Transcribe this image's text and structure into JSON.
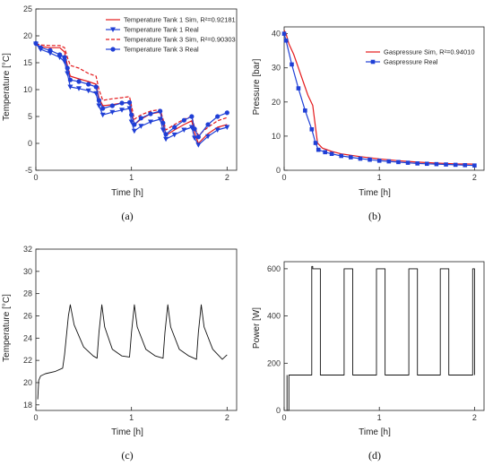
{
  "colors": {
    "sim": "#e41a1c",
    "real": "#1f3fd6",
    "plain": "#111111"
  },
  "chart_data": [
    {
      "id": "a",
      "type": "line",
      "caption": "(a)",
      "xlabel": "Time [h]",
      "ylabel": "Temperature [°C]",
      "xlim": [
        0,
        2.1
      ],
      "ylim": [
        -5,
        25
      ],
      "xticks": [
        0,
        1,
        2
      ],
      "yticks": [
        -5,
        0,
        5,
        10,
        15,
        20,
        25
      ],
      "legend_position": "top-right",
      "series": [
        {
          "name": "Temperature Tank 1 Sim, R²=0.92181",
          "color": "sim",
          "dash": false,
          "marker": "none",
          "x": [
            0,
            0.05,
            0.15,
            0.25,
            0.3,
            0.33,
            0.36,
            0.45,
            0.55,
            0.63,
            0.66,
            0.7,
            0.8,
            0.9,
            0.98,
            1.0,
            1.03,
            1.1,
            1.2,
            1.3,
            1.33,
            1.36,
            1.45,
            1.55,
            1.63,
            1.66,
            1.7,
            1.8,
            1.9,
            2.0
          ],
          "y": [
            18.3,
            18.0,
            17.8,
            17.8,
            17.0,
            14.5,
            12.5,
            12.0,
            11.5,
            11.0,
            8.5,
            7.0,
            7.2,
            7.5,
            7.6,
            6.0,
            3.5,
            4.5,
            5.5,
            5.8,
            3.5,
            1.5,
            2.5,
            3.5,
            4.2,
            2.0,
            0.0,
            1.8,
            3.0,
            3.5
          ]
        },
        {
          "name": "Temperature Tank 1 Real",
          "color": "real",
          "dash": false,
          "marker": "tri",
          "x": [
            0,
            0.05,
            0.15,
            0.25,
            0.3,
            0.33,
            0.36,
            0.45,
            0.55,
            0.63,
            0.66,
            0.7,
            0.8,
            0.9,
            0.98,
            1.0,
            1.03,
            1.1,
            1.2,
            1.3,
            1.33,
            1.36,
            1.45,
            1.55,
            1.63,
            1.66,
            1.7,
            1.8,
            1.9,
            2.0
          ],
          "y": [
            18.5,
            17.5,
            16.8,
            16.0,
            15.2,
            13.0,
            10.5,
            10.2,
            9.8,
            9.3,
            7.0,
            5.3,
            5.8,
            6.2,
            6.5,
            4.0,
            2.3,
            3.2,
            4.0,
            4.5,
            2.5,
            0.8,
            1.6,
            2.5,
            3.0,
            1.0,
            -0.3,
            1.3,
            2.5,
            3.0
          ]
        },
        {
          "name": "Temperature Tank 3 Sim, R²=0.90303",
          "color": "sim",
          "dash": true,
          "marker": "none",
          "x": [
            0,
            0.05,
            0.15,
            0.25,
            0.3,
            0.33,
            0.36,
            0.45,
            0.55,
            0.63,
            0.66,
            0.7,
            0.8,
            0.9,
            0.98,
            1.0,
            1.03,
            1.1,
            1.2,
            1.3,
            1.33,
            1.36,
            1.45,
            1.55,
            1.63,
            1.66,
            1.7,
            1.8,
            1.9,
            2.0
          ],
          "y": [
            18.5,
            18.3,
            18.2,
            18.2,
            17.8,
            16.0,
            14.5,
            14.0,
            13.0,
            12.5,
            10.0,
            8.0,
            8.3,
            8.5,
            8.7,
            7.0,
            4.5,
            5.3,
            6.0,
            6.3,
            4.5,
            2.5,
            3.5,
            4.5,
            5.0,
            3.0,
            1.5,
            3.0,
            4.2,
            4.8
          ]
        },
        {
          "name": "Temperature Tank 3 Real",
          "color": "real",
          "dash": false,
          "marker": "circle",
          "x": [
            0,
            0.05,
            0.15,
            0.25,
            0.3,
            0.33,
            0.36,
            0.45,
            0.55,
            0.63,
            0.66,
            0.7,
            0.8,
            0.9,
            0.98,
            1.0,
            1.03,
            1.1,
            1.2,
            1.3,
            1.33,
            1.36,
            1.45,
            1.55,
            1.63,
            1.66,
            1.7,
            1.8,
            1.9,
            2.0
          ],
          "y": [
            18.6,
            17.8,
            17.3,
            16.5,
            16.0,
            14.0,
            11.8,
            11.5,
            11.0,
            10.5,
            8.0,
            6.5,
            7.0,
            7.5,
            7.6,
            5.3,
            3.5,
            4.7,
            5.5,
            6.0,
            3.8,
            1.7,
            3.0,
            4.3,
            5.0,
            2.7,
            1.2,
            3.5,
            5.0,
            5.7
          ]
        }
      ]
    },
    {
      "id": "b",
      "type": "line",
      "caption": "(b)",
      "xlabel": "Time [h]",
      "ylabel": "Pressure [bar]",
      "xlim": [
        0,
        2.1
      ],
      "ylim": [
        0,
        42
      ],
      "xticks": [
        0,
        1,
        2
      ],
      "yticks": [
        0,
        10,
        20,
        30,
        40
      ],
      "legend_position": "top-right",
      "series": [
        {
          "name": "Gaspressure Sim, R²=0.94010",
          "color": "sim",
          "dash": false,
          "marker": "none",
          "x": [
            0,
            0.02,
            0.05,
            0.1,
            0.15,
            0.2,
            0.25,
            0.3,
            0.35,
            0.4,
            0.5,
            0.6,
            0.8,
            1.0,
            1.2,
            1.4,
            1.6,
            1.8,
            2.0
          ],
          "y": [
            41,
            40,
            37,
            34,
            30,
            26,
            22,
            19,
            8,
            6.5,
            5.5,
            4.8,
            4.0,
            3.3,
            2.8,
            2.4,
            2.1,
            1.9,
            1.8
          ]
        },
        {
          "name": "Gaspressure Real",
          "color": "real",
          "dash": false,
          "marker": "square",
          "x": [
            0,
            0.02,
            0.08,
            0.15,
            0.22,
            0.29,
            0.33,
            0.36,
            0.43,
            0.5,
            0.6,
            0.7,
            0.8,
            0.9,
            1.0,
            1.1,
            1.2,
            1.3,
            1.4,
            1.5,
            1.6,
            1.7,
            1.8,
            1.9,
            2.0
          ],
          "y": [
            40,
            38,
            31,
            24,
            17.5,
            12,
            8,
            6,
            5.3,
            4.8,
            4.2,
            3.8,
            3.4,
            3.1,
            2.8,
            2.6,
            2.4,
            2.2,
            2.0,
            1.9,
            1.8,
            1.7,
            1.6,
            1.5,
            1.4
          ]
        }
      ]
    },
    {
      "id": "c",
      "type": "line",
      "caption": "(c)",
      "xlabel": "Time [h]",
      "ylabel": "Temperature [°C]",
      "xlim": [
        0,
        2.1
      ],
      "ylim": [
        17.5,
        32
      ],
      "xticks": [
        0,
        1,
        2
      ],
      "yticks": [
        18,
        20,
        22,
        24,
        26,
        28,
        30,
        32
      ],
      "series": [
        {
          "color": "plain",
          "dash": false,
          "marker": "none",
          "x": [
            0.02,
            0.03,
            0.05,
            0.1,
            0.2,
            0.28,
            0.3,
            0.34,
            0.36,
            0.4,
            0.5,
            0.6,
            0.64,
            0.66,
            0.69,
            0.72,
            0.8,
            0.9,
            0.98,
            1.0,
            1.03,
            1.06,
            1.15,
            1.25,
            1.33,
            1.35,
            1.38,
            1.41,
            1.5,
            1.6,
            1.68,
            1.7,
            1.73,
            1.76,
            1.85,
            1.95,
            2.0
          ],
          "y": [
            18.5,
            20.2,
            20.6,
            20.8,
            21.0,
            21.3,
            22.5,
            26.0,
            27.0,
            25.2,
            23.2,
            22.4,
            22.2,
            24.5,
            27.0,
            25.0,
            23.0,
            22.4,
            22.3,
            24.5,
            27.0,
            25.0,
            23.0,
            22.4,
            22.2,
            24.5,
            27.0,
            25.0,
            23.0,
            22.4,
            22.1,
            24.5,
            27.0,
            25.0,
            23.0,
            22.1,
            22.5
          ]
        }
      ]
    },
    {
      "id": "d",
      "type": "line",
      "caption": "(d)",
      "xlabel": "Time [h]",
      "ylabel": "Power [W]",
      "xlim": [
        0,
        2.1
      ],
      "ylim": [
        0,
        630
      ],
      "xticks": [
        0,
        1,
        2
      ],
      "yticks": [
        0,
        200,
        400,
        600
      ],
      "series": [
        {
          "color": "plain",
          "dash": false,
          "marker": "none",
          "x": [
            0.03,
            0.03,
            0.05,
            0.05,
            0.29,
            0.29,
            0.3,
            0.3,
            0.38,
            0.38,
            0.63,
            0.63,
            0.72,
            0.72,
            0.97,
            0.97,
            1.06,
            1.06,
            1.31,
            1.31,
            1.4,
            1.4,
            1.64,
            1.64,
            1.73,
            1.73,
            1.98,
            1.98,
            2.0,
            2.0
          ],
          "y": [
            150,
            0,
            0,
            150,
            150,
            610,
            610,
            600,
            600,
            150,
            150,
            600,
            600,
            150,
            150,
            600,
            600,
            150,
            150,
            600,
            600,
            150,
            150,
            600,
            600,
            150,
            150,
            600,
            600,
            150
          ]
        }
      ]
    }
  ]
}
